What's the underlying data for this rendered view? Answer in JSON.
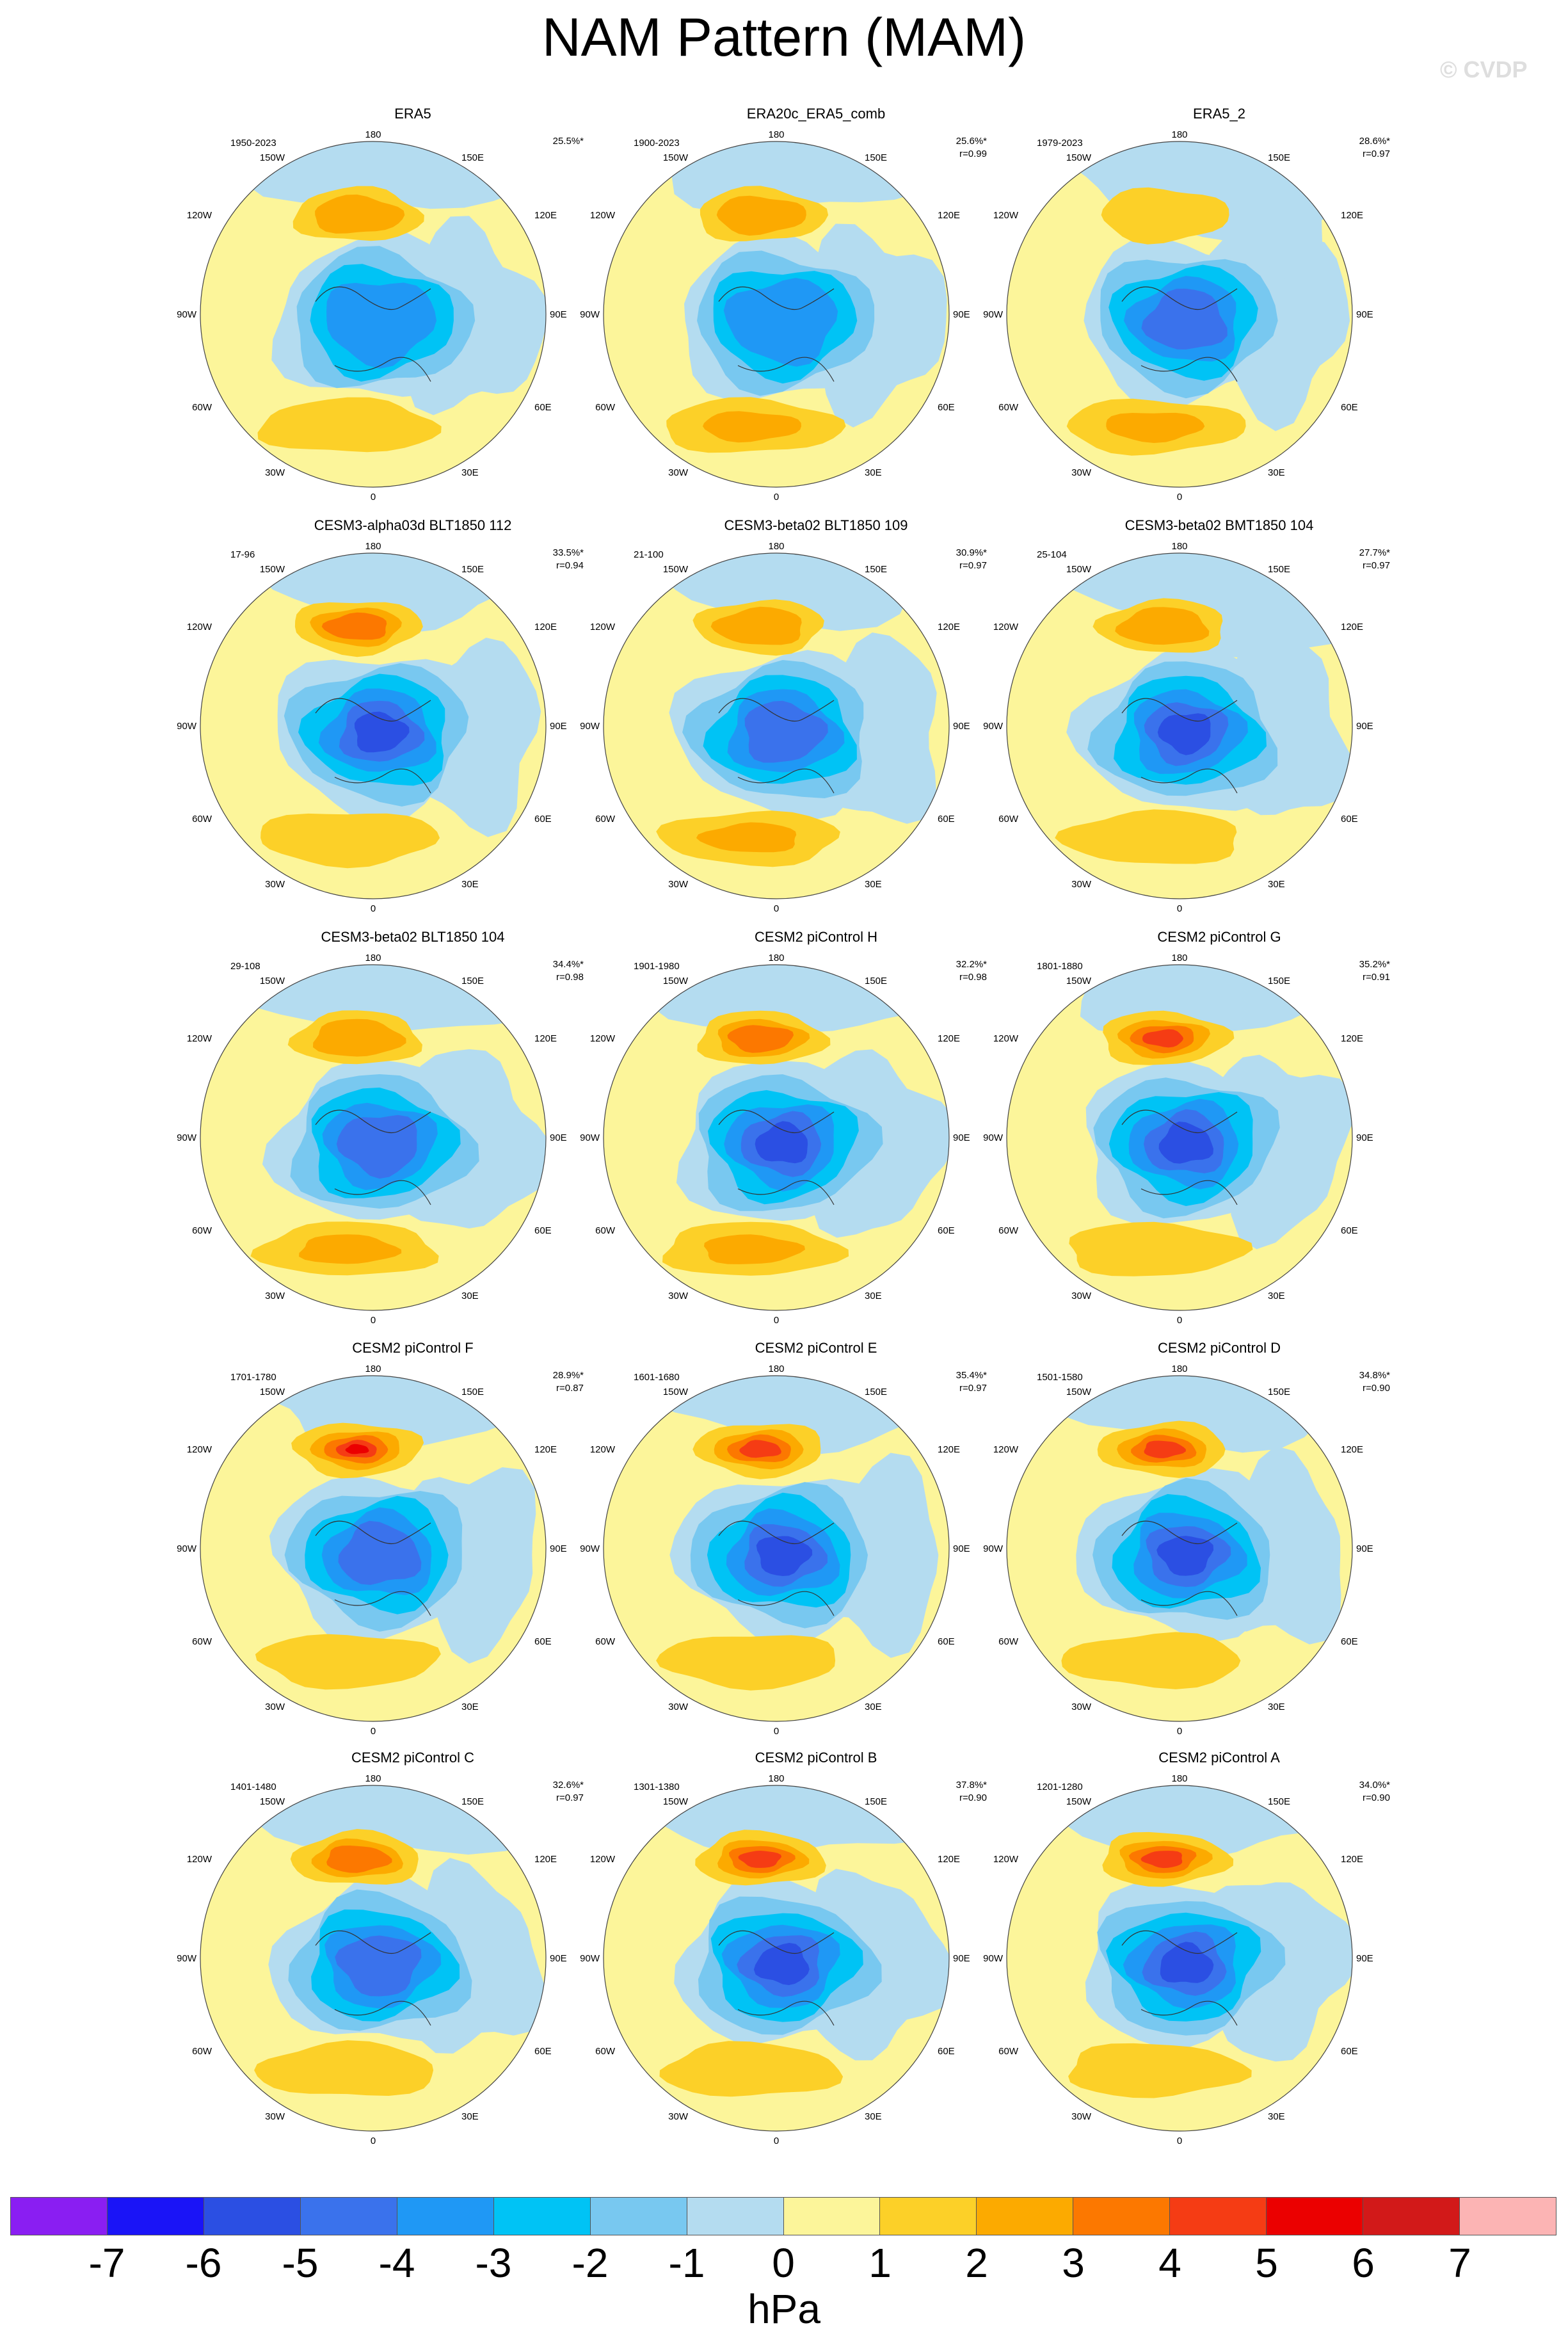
{
  "title": "NAM Pattern (MAM)",
  "watermark": "© CVDP",
  "units": "hPa",
  "colorbar": {
    "ticks": [
      "-7",
      "-6",
      "-5",
      "-4",
      "-3",
      "-2",
      "-1",
      "0",
      "1",
      "2",
      "3",
      "4",
      "5",
      "6",
      "7"
    ],
    "colors": [
      "#8a1ef2",
      "#1a14f7",
      "#2b4fe3",
      "#3a72ec",
      "#1f98f5",
      "#00c3f5",
      "#78c8f0",
      "#b4dcf0",
      "#fcf59a",
      "#fcd028",
      "#fcaa00",
      "#fc7800",
      "#f53c14",
      "#eb0000",
      "#d21919",
      "#fcb4b4"
    ]
  },
  "panels": [
    {
      "title": "ERA5",
      "years": "1950-2023",
      "pct": "25.5%*",
      "r": "",
      "amp": 0.55,
      "pac": 0.4,
      "atl": 0.45,
      "extra": 0
    },
    {
      "title": "ERA20c_ERA5_comb",
      "years": "1900-2023",
      "pct": "25.6%*",
      "r": "r=0.99",
      "amp": 0.55,
      "pac": 0.45,
      "atl": 0.5,
      "extra": 0
    },
    {
      "title": "ERA5_2",
      "years": "1979-2023",
      "pct": "28.6%*",
      "r": "r=0.97",
      "amp": 0.65,
      "pac": 0.25,
      "atl": 0.6,
      "extra": 0.5
    },
    {
      "title": "CESM3-alpha03d BLT1850 112",
      "years": "17-96",
      "pct": "33.5%*",
      "r": "r=0.94",
      "amp": 0.75,
      "pac": 0.6,
      "atl": 0.45,
      "extra": 0
    },
    {
      "title": "CESM3-beta02 BLT1850 109",
      "years": "21-100",
      "pct": "30.9%*",
      "r": "r=0.97",
      "amp": 0.72,
      "pac": 0.45,
      "atl": 0.55,
      "extra": 0
    },
    {
      "title": "CESM3-beta02 BMT1850 104",
      "years": "25-104",
      "pct": "27.7%*",
      "r": "r=0.97",
      "amp": 0.75,
      "pac": 0.4,
      "atl": 0.45,
      "extra": 0.5
    },
    {
      "title": "CESM3-beta02 BLT1850 104",
      "years": "29-108",
      "pct": "34.4%*",
      "r": "r=0.98",
      "amp": 0.72,
      "pac": 0.35,
      "atl": 0.5,
      "extra": 0
    },
    {
      "title": "CESM2 piControl H",
      "years": "1901-1980",
      "pct": "32.2%*",
      "r": "r=0.98",
      "amp": 0.8,
      "pac": 0.5,
      "atl": 0.5,
      "extra": 0
    },
    {
      "title": "CESM2 piControl G",
      "years": "1801-1880",
      "pct": "35.2%*",
      "r": "r=0.91",
      "amp": 0.82,
      "pac": 0.8,
      "atl": 0.4,
      "extra": 0
    },
    {
      "title": "CESM2 piControl F",
      "years": "1701-1780",
      "pct": "28.9%*",
      "r": "r=0.87",
      "amp": 0.72,
      "pac": 0.95,
      "atl": 0.4,
      "extra": 0
    },
    {
      "title": "CESM2 piControl E",
      "years": "1601-1680",
      "pct": "35.4%*",
      "r": "r=0.97",
      "amp": 0.9,
      "pac": 0.75,
      "atl": 0.45,
      "extra": 0
    },
    {
      "title": "CESM2 piControl D",
      "years": "1501-1580",
      "pct": "34.8%*",
      "r": "r=0.90",
      "amp": 0.85,
      "pac": 0.85,
      "atl": 0.4,
      "extra": 0
    },
    {
      "title": "CESM2 piControl C",
      "years": "1401-1480",
      "pct": "32.6%*",
      "r": "r=0.97",
      "amp": 0.72,
      "pac": 0.6,
      "atl": 0.4,
      "extra": 0
    },
    {
      "title": "CESM2 piControl B",
      "years": "1301-1380",
      "pct": "37.8%*",
      "r": "r=0.90",
      "amp": 0.85,
      "pac": 0.85,
      "atl": 0.45,
      "extra": 0
    },
    {
      "title": "CESM2 piControl A",
      "years": "1201-1280",
      "pct": "34.0%*",
      "r": "r=0.90",
      "amp": 0.8,
      "pac": 0.8,
      "atl": 0.4,
      "extra": 0
    }
  ],
  "lon_labels": {
    "top": "180",
    "bottom": "0",
    "w150": "150W",
    "e150": "150E",
    "w120": "120W",
    "e120": "120E",
    "w90": "90W",
    "e90": "90E",
    "w60": "60W",
    "e60": "60E",
    "w30": "30W",
    "e30": "30E"
  }
}
